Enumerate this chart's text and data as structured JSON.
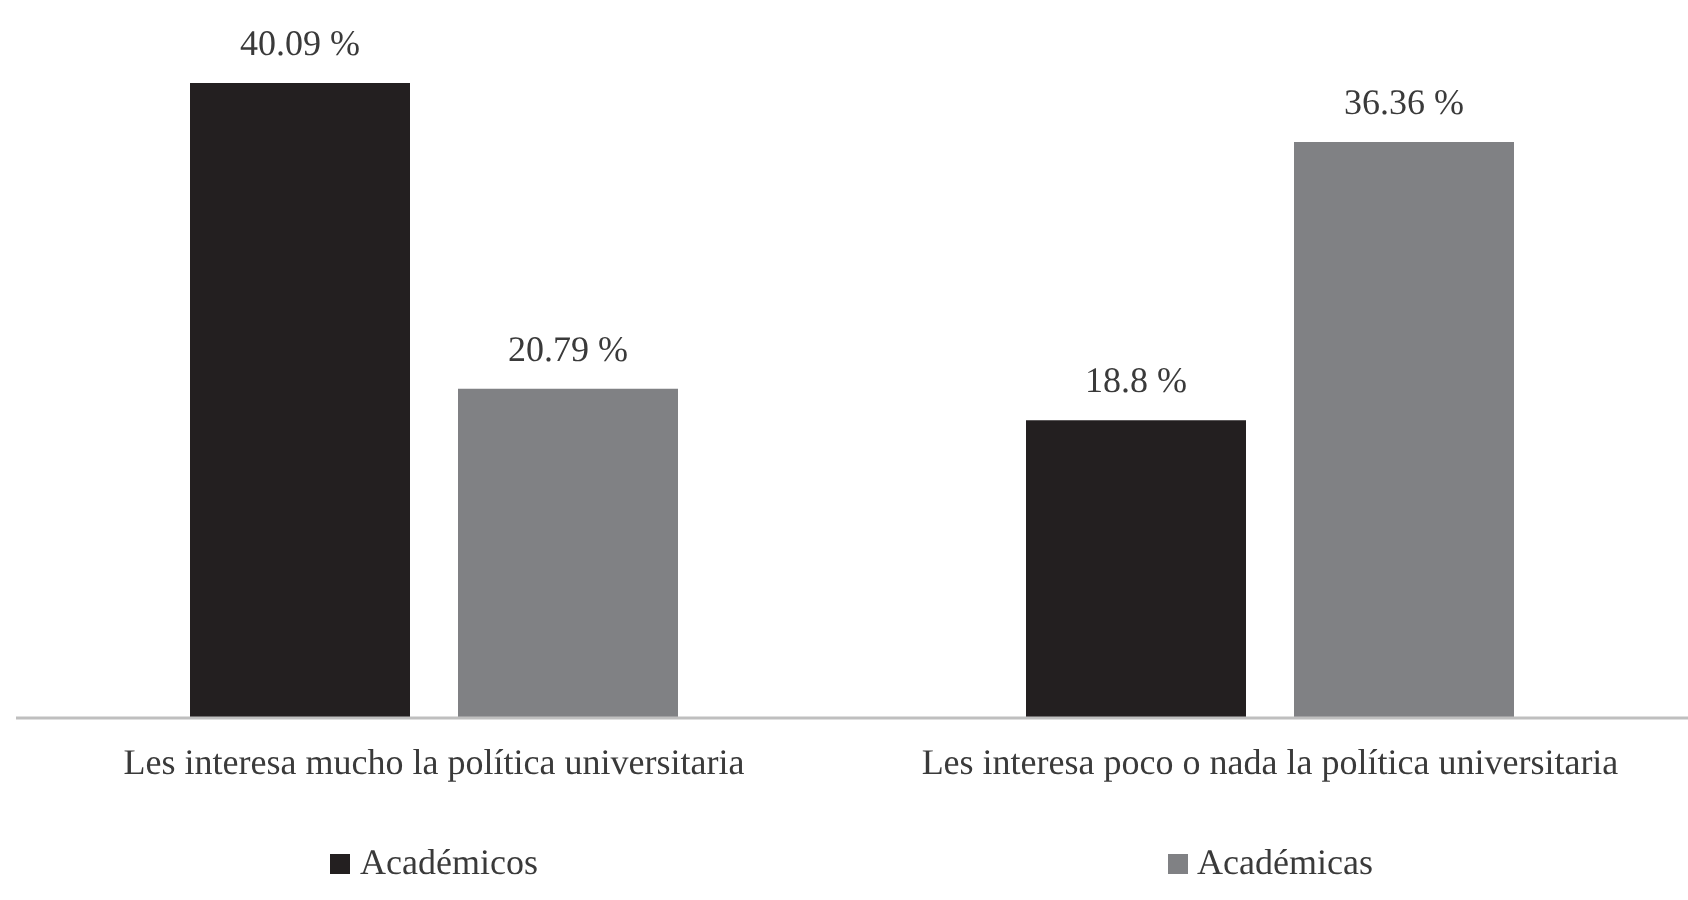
{
  "chart_data": {
    "type": "bar",
    "categories": [
      "Les interesa mucho la política universitaria",
      "Les interesa poco o nada la política universitaria"
    ],
    "series": [
      {
        "name": "Académicos",
        "color": "#231f20",
        "values": [
          40.09,
          18.8
        ],
        "value_labels": [
          "40.09 %",
          "18.8 %"
        ]
      },
      {
        "name": "Académicas",
        "color": "#808184",
        "values": [
          20.79,
          36.36
        ],
        "value_labels": [
          "20.79 %",
          "36.36 %"
        ]
      }
    ],
    "legend": "bottom"
  }
}
